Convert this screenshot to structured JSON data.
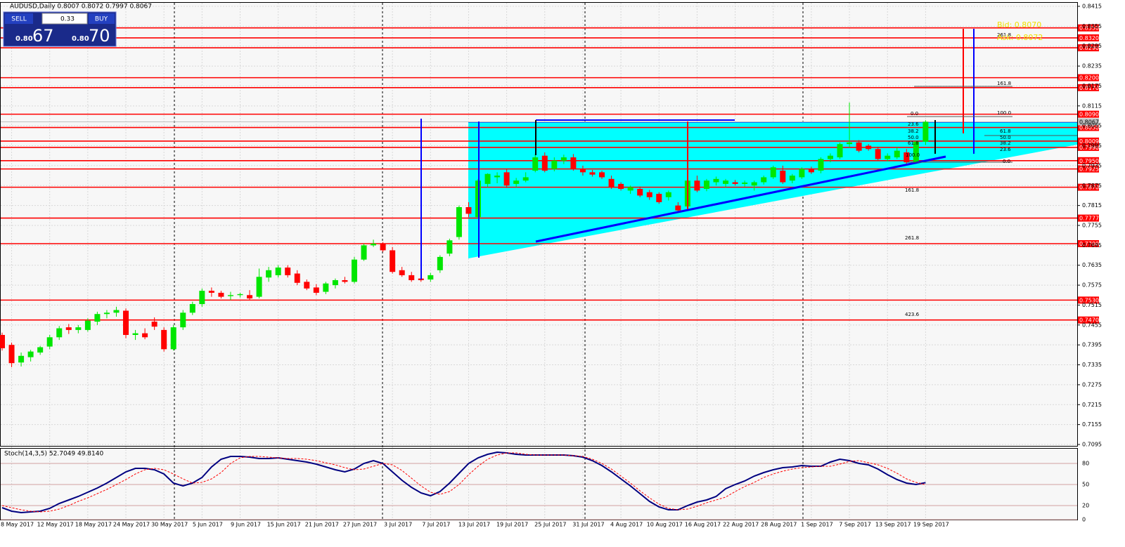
{
  "chart_data": [
    {
      "type": "candlestick",
      "title": "AUDUSD,Daily  0.8007 0.8072 0.7997 0.8067",
      "up_color": "#00e600",
      "down_color": "#ff0000",
      "grid": true,
      "ylim": [
        0.7095,
        0.8415
      ],
      "yticks": [
        0.8415,
        0.8355,
        0.8295,
        0.8235,
        0.8175,
        0.8115,
        0.8055,
        0.7995,
        0.7935,
        0.7875,
        0.7815,
        0.7755,
        0.7695,
        0.7635,
        0.7575,
        0.7515,
        0.7455,
        0.7395,
        0.7335,
        0.7275,
        0.7215,
        0.7155,
        0.7095
      ],
      "levels": [
        {
          "value": 0.835,
          "label": "0.8350"
        },
        {
          "value": 0.832,
          "label": "0.8320"
        },
        {
          "value": 0.829,
          "label": "0.8290"
        },
        {
          "value": 0.82,
          "label": "0.8200"
        },
        {
          "value": 0.817,
          "label": "0.8170"
        },
        {
          "value": 0.809,
          "label": "0.8090"
        },
        {
          "value": 0.805,
          "label": "0.8050"
        },
        0.8009,
        {
          "value": 0.799,
          "label": "0.7990"
        },
        {
          "value": 0.795,
          "label": "0.7950"
        },
        0.7925,
        {
          "value": 0.787,
          "label": "0.7870"
        },
        0.7777,
        {
          "value": 0.77,
          "label": "0.7700"
        },
        {
          "value": 0.753,
          "label": "0.7530"
        },
        {
          "value": 0.747,
          "label": "0.7470"
        }
      ],
      "level_color": "#ff0000",
      "current_price": 0.8067,
      "annotations": [
        "261.8",
        "161.8",
        "100.0",
        "0.0",
        "23.6",
        "61.8",
        "38.2",
        "50.0",
        "50.0",
        "38.2",
        "61.8",
        "23.6",
        "100.0",
        "0.0",
        "161.8",
        "261.8",
        "423.6",
        "Bid: 0.8070",
        "Ask: 0.8072"
      ],
      "categories": [
        null,
        "8 May 2017",
        null,
        null,
        null,
        "12 May 2017",
        null,
        null,
        null,
        "18 May 2017",
        null,
        null,
        null,
        "24 May 2017",
        null,
        null,
        null,
        "30 May 2017",
        null,
        null,
        null,
        "5 Jun 2017",
        null,
        null,
        null,
        "9 Jun 2017",
        null,
        null,
        null,
        "15 Jun 2017",
        null,
        null,
        null,
        "21 Jun 2017",
        null,
        null,
        null,
        "27 Jun 2017",
        null,
        null,
        null,
        "3 Jul 2017",
        null,
        null,
        null,
        "7 Jul 2017",
        null,
        null,
        null,
        "13 Jul 2017",
        null,
        null,
        null,
        "19 Jul 2017",
        null,
        null,
        null,
        "25 Jul 2017",
        null,
        null,
        null,
        "31 Jul 2017",
        null,
        null,
        null,
        "4 Aug 2017",
        null,
        null,
        null,
        "10 Aug 2017",
        null,
        null,
        null,
        "16 Aug 2017",
        null,
        null,
        null,
        "22 Aug 2017",
        null,
        null,
        null,
        "28 Aug 2017",
        null,
        null,
        null,
        "1 Sep 2017",
        null,
        null,
        null,
        "7 Sep 2017",
        null,
        null,
        null,
        "13 Sep 2017",
        null,
        null,
        null,
        "19 Sep 2017"
      ],
      "ohlc": [
        [
          0.7425,
          0.7432,
          0.7378,
          0.7385
        ],
        [
          0.7395,
          0.7402,
          0.7328,
          0.734
        ],
        [
          0.7342,
          0.7372,
          0.733,
          0.7362
        ],
        [
          0.7358,
          0.738,
          0.7345,
          0.7375
        ],
        [
          0.7372,
          0.7392,
          0.7365,
          0.7388
        ],
        [
          0.739,
          0.7425,
          0.7382,
          0.7418
        ],
        [
          0.7418,
          0.7452,
          0.741,
          0.7445
        ],
        [
          0.7448,
          0.7458,
          0.7428,
          0.744
        ],
        [
          0.744,
          0.7455,
          0.743,
          0.7448
        ],
        [
          0.744,
          0.7475,
          0.7435,
          0.7468
        ],
        [
          0.7465,
          0.7495,
          0.7455,
          0.7488
        ],
        [
          0.7488,
          0.75,
          0.7475,
          0.7492
        ],
        [
          0.7492,
          0.751,
          0.748,
          0.75
        ],
        [
          0.7498,
          0.7505,
          0.7415,
          0.7425
        ],
        [
          0.7425,
          0.744,
          0.741,
          0.743
        ],
        [
          0.743,
          0.7445,
          0.7412,
          0.7418
        ],
        [
          0.7465,
          0.7478,
          0.744,
          0.745
        ],
        [
          0.744,
          0.7448,
          0.7375,
          0.7382
        ],
        [
          0.7382,
          0.7455,
          0.7378,
          0.7448
        ],
        [
          0.7448,
          0.75,
          0.744,
          0.7492
        ],
        [
          0.7492,
          0.7525,
          0.7485,
          0.7518
        ],
        [
          0.7518,
          0.7565,
          0.751,
          0.7558
        ],
        [
          0.7558,
          0.7568,
          0.754,
          0.7552
        ],
        [
          0.7552,
          0.7558,
          0.7535,
          0.754
        ],
        [
          0.7542,
          0.7555,
          0.753,
          0.7545
        ],
        [
          0.7545,
          0.7552,
          0.7538,
          0.7548
        ],
        [
          0.7545,
          0.756,
          0.753,
          0.7535
        ],
        [
          0.754,
          0.7625,
          0.7535,
          0.76
        ],
        [
          0.7598,
          0.763,
          0.7585,
          0.762
        ],
        [
          0.7605,
          0.7635,
          0.7598,
          0.7628
        ],
        [
          0.7628,
          0.7635,
          0.7598,
          0.7605
        ],
        [
          0.761,
          0.762,
          0.7575,
          0.7582
        ],
        [
          0.7585,
          0.7592,
          0.756,
          0.7565
        ],
        [
          0.7568,
          0.7578,
          0.7545,
          0.7552
        ],
        [
          0.7555,
          0.7585,
          0.7548,
          0.758
        ],
        [
          0.7575,
          0.7595,
          0.7565,
          0.759
        ],
        [
          0.759,
          0.76,
          0.758,
          0.7585
        ],
        [
          0.7585,
          0.766,
          0.758,
          0.7652
        ],
        [
          0.7652,
          0.77,
          0.7648,
          0.7695
        ],
        [
          0.7695,
          0.7712,
          0.769,
          0.77
        ],
        [
          0.77,
          0.7705,
          0.7675,
          0.768
        ],
        [
          0.768,
          0.769,
          0.761,
          0.7615
        ],
        [
          0.762,
          0.763,
          0.76,
          0.7605
        ],
        [
          0.7605,
          0.7615,
          0.7585,
          0.759
        ],
        [
          0.7595,
          0.761,
          0.7585,
          0.759
        ],
        [
          0.7592,
          0.7612,
          0.7585,
          0.7605
        ],
        [
          0.762,
          0.7665,
          0.7612,
          0.766
        ],
        [
          0.767,
          0.7715,
          0.7662,
          0.771
        ],
        [
          0.772,
          0.7815,
          0.7712,
          0.781
        ],
        [
          0.781,
          0.7825,
          0.778,
          0.779
        ],
        [
          0.778,
          0.7895,
          0.7775,
          0.789
        ],
        [
          0.788,
          0.7912,
          0.787,
          0.791
        ],
        [
          0.79,
          0.7915,
          0.7882,
          0.7905
        ],
        [
          0.7915,
          0.7925,
          0.7868,
          0.7875
        ],
        [
          0.788,
          0.7898,
          0.787,
          0.789
        ],
        [
          0.789,
          0.7915,
          0.7885,
          0.79
        ],
        [
          0.792,
          0.797,
          0.7915,
          0.796
        ],
        [
          0.7965,
          0.7975,
          0.7915,
          0.792
        ],
        [
          0.7925,
          0.796,
          0.7918,
          0.795
        ],
        [
          0.795,
          0.7968,
          0.794,
          0.796
        ],
        [
          0.796,
          0.797,
          0.792,
          0.7925
        ],
        [
          0.7925,
          0.7935,
          0.7905,
          0.7915
        ],
        [
          0.7915,
          0.7922,
          0.7902,
          0.7908
        ],
        [
          0.7915,
          0.792,
          0.7895,
          0.79
        ],
        [
          0.7895,
          0.7905,
          0.7865,
          0.787
        ],
        [
          0.788,
          0.7885,
          0.786,
          0.7865
        ],
        [
          0.786,
          0.7875,
          0.785,
          0.787
        ],
        [
          0.7865,
          0.7872,
          0.784,
          0.7845
        ],
        [
          0.7855,
          0.7862,
          0.7832,
          0.784
        ],
        [
          0.785,
          0.7855,
          0.782,
          0.7825
        ],
        [
          0.784,
          0.786,
          0.783,
          0.7855
        ],
        [
          0.7815,
          0.7825,
          0.7795,
          0.78
        ],
        [
          0.7812,
          0.79,
          0.7805,
          0.789
        ],
        [
          0.789,
          0.7905,
          0.7855,
          0.786
        ],
        [
          0.7865,
          0.7895,
          0.7858,
          0.789
        ],
        [
          0.7885,
          0.7902,
          0.7875,
          0.7895
        ],
        [
          0.788,
          0.7895,
          0.787,
          0.789
        ],
        [
          0.7885,
          0.7892,
          0.7875,
          0.788
        ],
        [
          0.788,
          0.789,
          0.7872,
          0.7884
        ],
        [
          0.7875,
          0.789,
          0.786,
          0.7885
        ],
        [
          0.7885,
          0.7905,
          0.7878,
          0.79
        ],
        [
          0.79,
          0.7935,
          0.7895,
          0.793
        ],
        [
          0.792,
          0.7935,
          0.788,
          0.7885
        ],
        [
          0.789,
          0.791,
          0.7882,
          0.7905
        ],
        [
          0.79,
          0.793,
          0.7895,
          0.7925
        ],
        [
          0.7925,
          0.7932,
          0.791,
          0.7915
        ],
        [
          0.792,
          0.796,
          0.7912,
          0.7955
        ],
        [
          0.7955,
          0.7972,
          0.7945,
          0.7965
        ],
        [
          0.796,
          0.8005,
          0.7955,
          0.8
        ],
        [
          0.8,
          0.8125,
          0.799,
          0.8005
        ],
        [
          0.8005,
          0.8012,
          0.7975,
          0.798
        ],
        [
          0.7995,
          0.8,
          0.798,
          0.7985
        ],
        [
          0.7985,
          0.7992,
          0.795,
          0.7955
        ],
        [
          0.7955,
          0.7972,
          0.7948,
          0.7965
        ],
        [
          0.796,
          0.799,
          0.7955,
          0.798
        ],
        [
          0.7975,
          0.7985,
          0.794,
          0.7945
        ],
        [
          0.7945,
          0.801,
          0.794,
          0.8007
        ],
        [
          0.8007,
          0.8072,
          0.7997,
          0.8067
        ]
      ]
    },
    {
      "type": "line",
      "title": "Stoch(14,3,5) 52.7049 49.8140",
      "ylim": [
        0,
        100
      ],
      "yticks": [
        0,
        20,
        50,
        80
      ],
      "series": [
        {
          "color": "#000080",
          "values": [
            17,
            12,
            10,
            11,
            12,
            16,
            23,
            28,
            33,
            39,
            45,
            52,
            60,
            68,
            73,
            73,
            71,
            65,
            52,
            48,
            52,
            60,
            75,
            86,
            90,
            90,
            89,
            87,
            87,
            88,
            86,
            84,
            82,
            79,
            75,
            71,
            68,
            72,
            80,
            84,
            80,
            68,
            56,
            46,
            38,
            34,
            40,
            52,
            66,
            80,
            88,
            93,
            96,
            95,
            93,
            92,
            92,
            92,
            92,
            92,
            91,
            89,
            84,
            77,
            68,
            58,
            48,
            37,
            26,
            18,
            14,
            14,
            20,
            25,
            28,
            33,
            44,
            50,
            55,
            62,
            67,
            71,
            74,
            75,
            77,
            76,
            76,
            82,
            86,
            84,
            80,
            78,
            72,
            64,
            57,
            52,
            50,
            52.7049
          ]
        },
        {
          "color": "#ff0000",
          "dashed": true,
          "values": [
            20,
            17,
            14,
            12,
            11,
            12,
            15,
            20,
            26,
            31,
            37,
            43,
            50,
            57,
            65,
            71,
            73,
            71,
            65,
            58,
            52,
            53,
            58,
            67,
            80,
            88,
            90,
            90,
            89,
            88,
            87,
            87,
            86,
            84,
            81,
            78,
            74,
            71,
            72,
            76,
            80,
            78,
            70,
            59,
            48,
            39,
            36,
            40,
            50,
            64,
            76,
            86,
            92,
            95,
            95,
            93,
            92,
            92,
            92,
            92,
            91,
            90,
            86,
            80,
            72,
            62,
            52,
            41,
            31,
            22,
            16,
            14,
            15,
            19,
            24,
            28,
            32,
            40,
            47,
            53,
            60,
            65,
            69,
            72,
            74,
            75,
            76,
            76,
            79,
            83,
            84,
            81,
            78,
            73,
            66,
            58,
            53,
            49.814
          ]
        }
      ]
    }
  ],
  "trade_panel": {
    "sell": "SELL",
    "buy": "BUY",
    "lot": "0.33",
    "sell_big": "0.80",
    "sell_pips": "67",
    "buy_big": "0.80",
    "buy_pips": "70"
  }
}
